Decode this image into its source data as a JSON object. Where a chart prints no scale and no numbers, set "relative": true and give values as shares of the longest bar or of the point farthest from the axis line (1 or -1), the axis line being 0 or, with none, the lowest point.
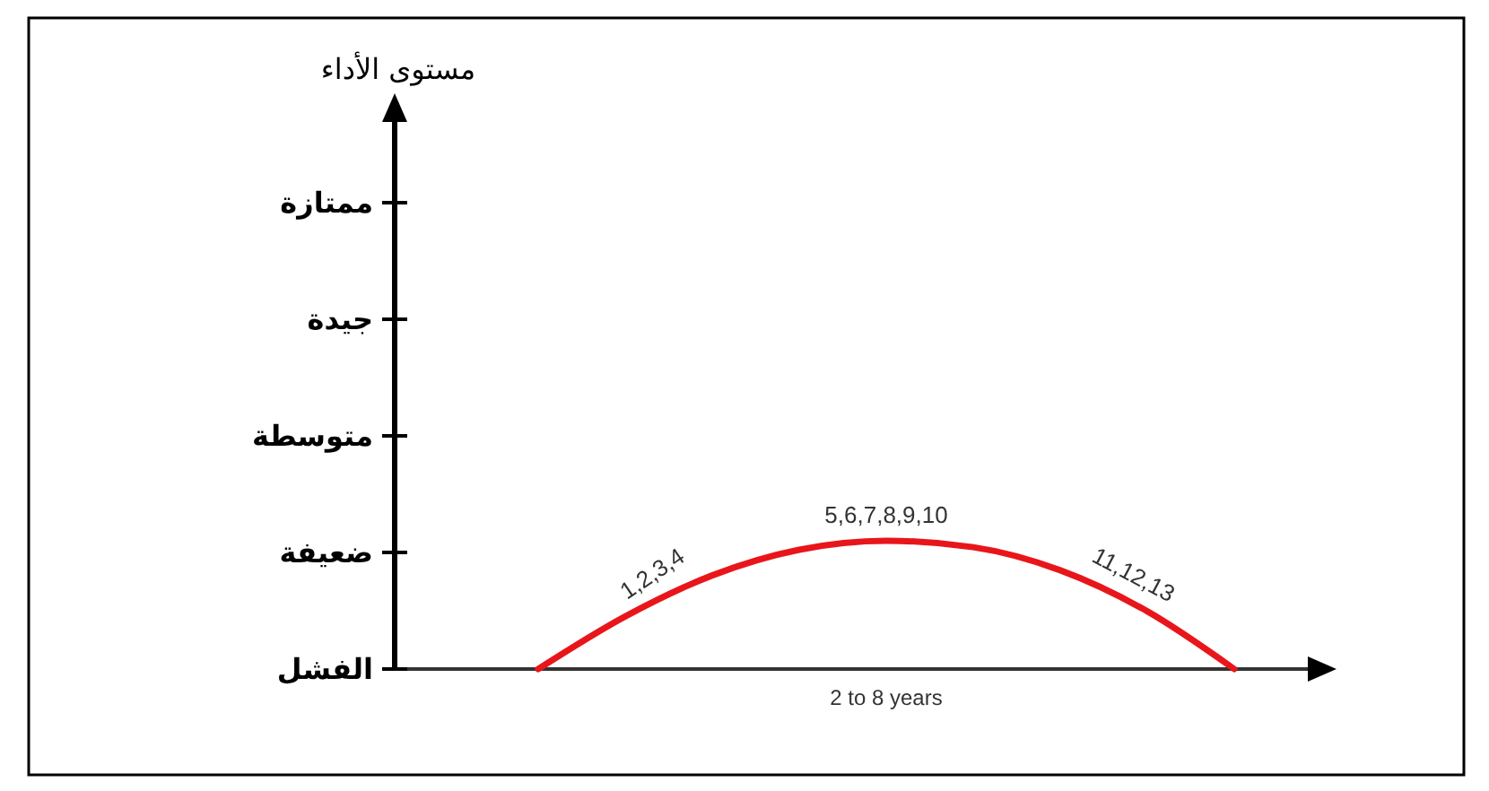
{
  "chart_data": {
    "type": "line",
    "relative": true,
    "xlabel": "2 to 8 years",
    "categories": [
      null,
      null,
      null,
      null,
      null,
      null,
      null,
      null,
      null
    ],
    "series": [
      {
        "color": "#e8161b",
        "values": [
          0,
          0.41,
          0.73,
          0.93,
          1,
          0.95,
          0.77,
          0.45,
          0
        ]
      }
    ],
    "annotations": [
      "1,2,3,4",
      "5,6,7,8,9,10",
      "11,12,13",
      "الفشل",
      "ضعيفة",
      "متوسطة",
      "جيدة",
      "ممتازة",
      "مستوى الأداء"
    ],
    "marker": "none",
    "line_style": "solid"
  }
}
